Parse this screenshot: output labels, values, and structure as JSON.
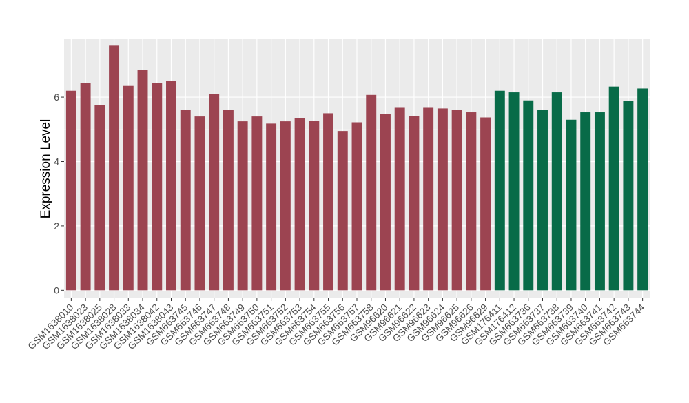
{
  "chart_data": {
    "type": "bar",
    "title": "",
    "xlabel": "",
    "ylabel": "Expression Level",
    "ylim": [
      -0.25,
      7.8
    ],
    "yticks": [
      0,
      2,
      4,
      6
    ],
    "grid": true,
    "legend": "none",
    "categories": [
      "GSM1638010",
      "GSM1638023",
      "GSM1638025",
      "GSM1638028",
      "GSM1638033",
      "GSM1638034",
      "GSM1638042",
      "GSM1638043",
      "GSM663745",
      "GSM663746",
      "GSM663747",
      "GSM663748",
      "GSM663749",
      "GSM663750",
      "GSM663751",
      "GSM663752",
      "GSM663753",
      "GSM663754",
      "GSM663755",
      "GSM663756",
      "GSM663757",
      "GSM663758",
      "GSM96620",
      "GSM96621",
      "GSM96622",
      "GSM96623",
      "GSM96624",
      "GSM96625",
      "GSM96626",
      "GSM96629",
      "GSM176411",
      "GSM176412",
      "GSM663736",
      "GSM663737",
      "GSM663738",
      "GSM663739",
      "GSM663740",
      "GSM663741",
      "GSM663742",
      "GSM663743",
      "GSM663744"
    ],
    "values": [
      6.2,
      6.45,
      5.75,
      7.6,
      6.35,
      6.85,
      6.45,
      6.5,
      5.6,
      5.4,
      6.1,
      5.6,
      5.25,
      5.4,
      5.18,
      5.25,
      5.35,
      5.27,
      5.5,
      4.95,
      5.22,
      6.07,
      5.47,
      5.67,
      5.42,
      5.67,
      5.65,
      5.6,
      5.53,
      5.37,
      6.2,
      6.15,
      5.9,
      5.6,
      6.15,
      5.3,
      5.53,
      5.53,
      6.33,
      5.88,
      6.27
    ],
    "groups": [
      0,
      0,
      0,
      0,
      0,
      0,
      0,
      0,
      0,
      0,
      0,
      0,
      0,
      0,
      0,
      0,
      0,
      0,
      0,
      0,
      0,
      0,
      0,
      0,
      0,
      0,
      0,
      0,
      0,
      0,
      1,
      1,
      1,
      1,
      1,
      1,
      1,
      1,
      1,
      1,
      1
    ],
    "colors": [
      "#9c4451",
      "#086b48"
    ]
  }
}
